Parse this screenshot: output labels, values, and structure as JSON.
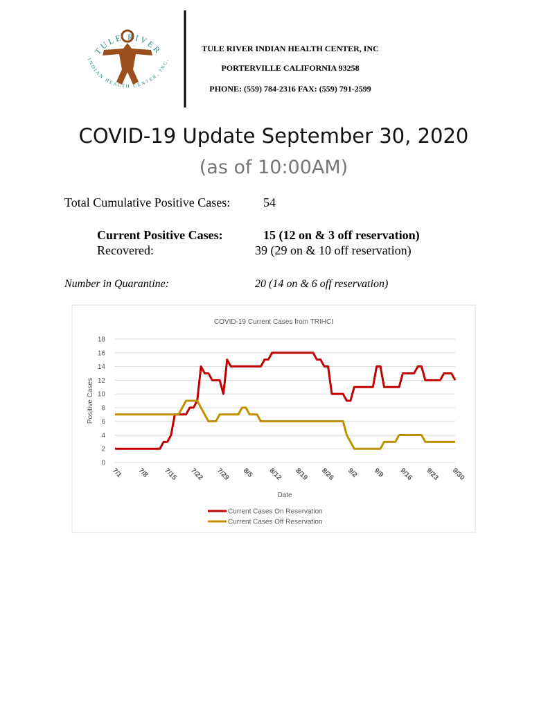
{
  "header": {
    "logo_top": "TULE RIVER",
    "logo_bottom": "INDIAN HEALTH CENTER, INC.",
    "org": "TULE RIVER INDIAN HEALTH CENTER, INC",
    "address": "PORTERVILLE CALIFORNIA 93258",
    "phone": "PHONE: (559) 784-2316 FAX: (559) 791-2599"
  },
  "title": "COVID-19 Update September 30, 2020",
  "subtitle": "(as of 10:00AM)",
  "stats": {
    "total": {
      "label": "Total Cumulative Positive Cases:",
      "value": "54"
    },
    "current": {
      "label": "Current Positive Cases:",
      "value": "15 (12 on & 3 off reservation)"
    },
    "recovered": {
      "label": "Recovered:",
      "value": "39 (29 on & 10 off reservation)"
    },
    "quarantine": {
      "label": "Number in Quarantine:",
      "value": "20 (14 on & 6 off reservation)"
    }
  },
  "chart_data": {
    "type": "line",
    "title": "COVID-19 Current Cases from TRIHCI",
    "x_label": "Date",
    "y_label": "Positive Cases",
    "categories": [
      "7/1",
      null,
      null,
      null,
      null,
      null,
      null,
      "7/8",
      null,
      null,
      null,
      null,
      null,
      null,
      "7/15",
      null,
      null,
      null,
      null,
      null,
      null,
      "7/22",
      null,
      null,
      null,
      null,
      null,
      null,
      "7/29",
      null,
      null,
      null,
      null,
      null,
      null,
      "8/5",
      null,
      null,
      null,
      null,
      null,
      null,
      "8/12",
      null,
      null,
      null,
      null,
      null,
      null,
      "8/19",
      null,
      null,
      null,
      null,
      null,
      null,
      "8/26",
      null,
      null,
      null,
      null,
      null,
      null,
      "9/2",
      null,
      null,
      null,
      null,
      null,
      null,
      "9/9",
      null,
      null,
      null,
      null,
      null,
      null,
      "9/16",
      null,
      null,
      null,
      null,
      null,
      null,
      "9/23",
      null,
      null,
      null,
      null,
      null,
      null,
      "9/30"
    ],
    "series": [
      {
        "name": "Current Cases On Reservation",
        "color": "#c00000",
        "values": [
          2,
          2,
          2,
          2,
          2,
          2,
          2,
          2,
          2,
          2,
          2,
          2,
          2,
          3,
          3,
          4,
          7,
          7,
          7,
          7,
          8,
          8,
          9,
          14,
          13,
          13,
          12,
          12,
          12,
          10,
          15,
          14,
          14,
          14,
          14,
          14,
          14,
          14,
          14,
          14,
          15,
          15,
          16,
          16,
          16,
          16,
          16,
          16,
          16,
          16,
          16,
          16,
          16,
          16,
          15,
          15,
          14,
          14,
          10,
          10,
          10,
          10,
          9,
          9,
          11,
          11,
          11,
          11,
          11,
          11,
          14,
          14,
          11,
          11,
          11,
          11,
          11,
          13,
          13,
          13,
          13,
          14,
          14,
          12,
          12,
          12,
          12,
          12,
          13,
          13,
          13,
          12
        ]
      },
      {
        "name": "Current Cases Off Reservation",
        "color": "#bf9000",
        "values": [
          7,
          7,
          7,
          7,
          7,
          7,
          7,
          7,
          7,
          7,
          7,
          7,
          7,
          7,
          7,
          7,
          7,
          7,
          8,
          9,
          9,
          9,
          9,
          8,
          7,
          6,
          6,
          6,
          7,
          7,
          7,
          7,
          7,
          7,
          8,
          8,
          7,
          7,
          7,
          6,
          6,
          6,
          6,
          6,
          6,
          6,
          6,
          6,
          6,
          6,
          6,
          6,
          6,
          6,
          6,
          6,
          6,
          6,
          6,
          6,
          6,
          6,
          4,
          3,
          2,
          2,
          2,
          2,
          2,
          2,
          2,
          2,
          3,
          3,
          3,
          3,
          4,
          4,
          4,
          4,
          4,
          4,
          4,
          3,
          3,
          3,
          3,
          3,
          3,
          3,
          3,
          3
        ]
      }
    ],
    "ylim": [
      0,
      18
    ],
    "yticks": [
      0,
      2,
      4,
      6,
      8,
      10,
      12,
      14,
      16,
      18
    ],
    "grid": true,
    "legend": "bottom"
  }
}
